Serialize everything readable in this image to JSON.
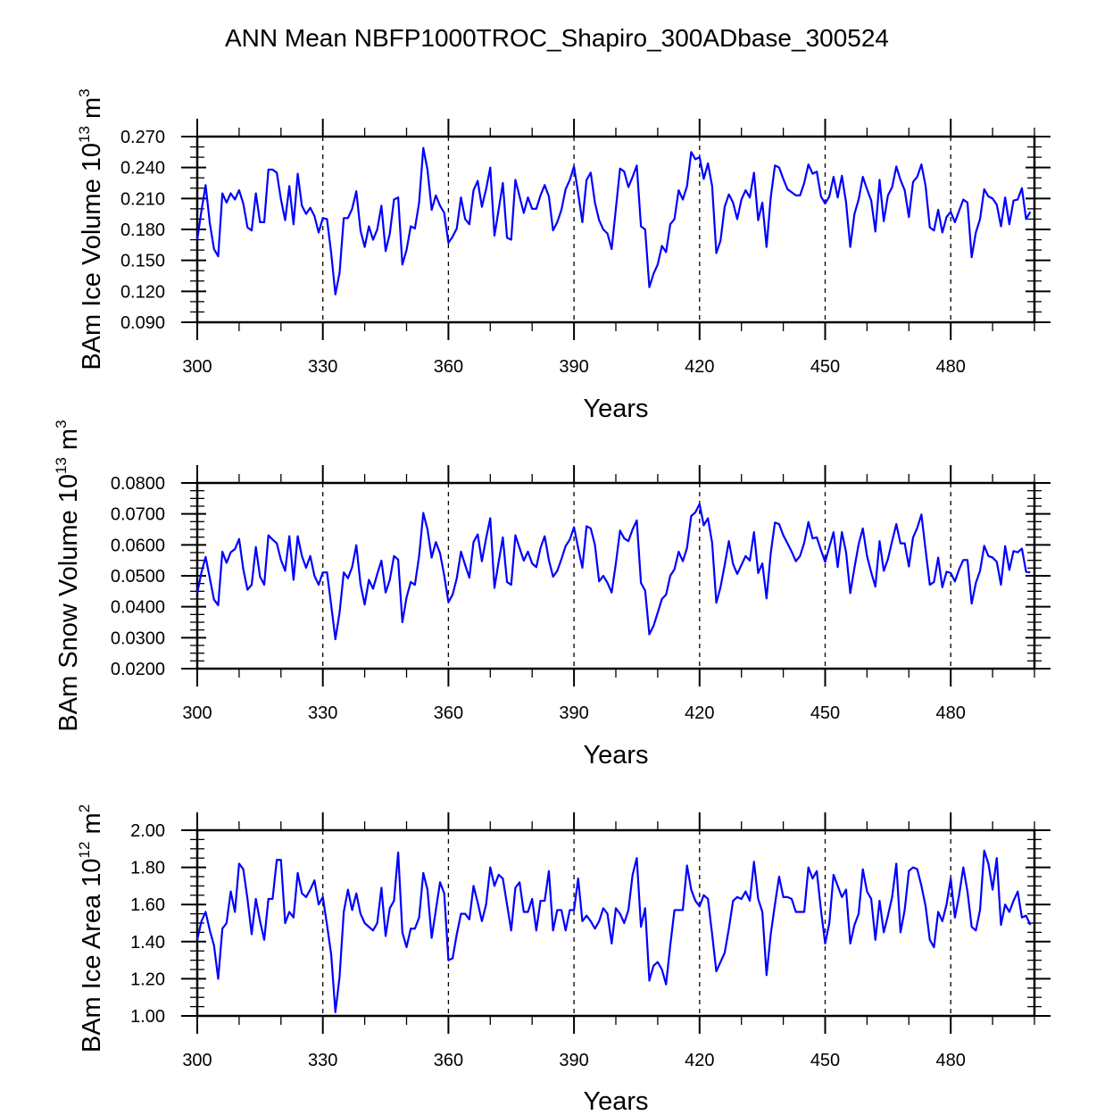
{
  "title": "ANN Mean NBFP1000TROC_Shapiro_300ADbase_300524",
  "chart_data": [
    {
      "type": "line",
      "title": "ANN Mean NBFP1000TROC_Shapiro_300ADbase_300524",
      "ylabel_main": "BAm Ice Volume 10",
      "ylabel_exp": "13",
      "ylabel_unit": "m",
      "ylabel_unit_exp": "3",
      "xlabel": "Years",
      "xlim": [
        300,
        500
      ],
      "ylim": [
        0.09,
        0.27
      ],
      "xticks": [
        300,
        330,
        360,
        390,
        420,
        450,
        480
      ],
      "xtick_labels": [
        "300",
        "330",
        "360",
        "390",
        "420",
        "450",
        "480"
      ],
      "yticks": [
        0.09,
        0.12,
        0.15,
        0.18,
        0.21,
        0.24,
        0.27
      ],
      "ytick_labels": [
        "0.090",
        "0.120",
        "0.150",
        "0.180",
        "0.210",
        "0.240",
        "0.270"
      ],
      "y_minor_step": 0.01,
      "x_minor_step": 10,
      "grid": "dashed vertical lines at x major ticks",
      "color": "#0000ff",
      "x_start": 300,
      "x_step": 1,
      "values": [
        0.17,
        0.198,
        0.223,
        0.186,
        0.161,
        0.154,
        0.215,
        0.206,
        0.215,
        0.209,
        0.218,
        0.205,
        0.182,
        0.179,
        0.215,
        0.187,
        0.187,
        0.238,
        0.238,
        0.235,
        0.209,
        0.189,
        0.222,
        0.185,
        0.234,
        0.203,
        0.195,
        0.201,
        0.193,
        0.177,
        0.191,
        0.19,
        0.157,
        0.117,
        0.138,
        0.191,
        0.191,
        0.2,
        0.217,
        0.179,
        0.163,
        0.183,
        0.17,
        0.18,
        0.203,
        0.159,
        0.176,
        0.209,
        0.211,
        0.146,
        0.16,
        0.183,
        0.181,
        0.206,
        0.259,
        0.238,
        0.199,
        0.213,
        0.203,
        0.196,
        0.167,
        0.173,
        0.181,
        0.211,
        0.19,
        0.185,
        0.218,
        0.227,
        0.202,
        0.219,
        0.24,
        0.174,
        0.199,
        0.225,
        0.172,
        0.17,
        0.228,
        0.212,
        0.196,
        0.211,
        0.2,
        0.2,
        0.213,
        0.223,
        0.212,
        0.179,
        0.187,
        0.199,
        0.219,
        0.228,
        0.241,
        0.215,
        0.187,
        0.228,
        0.235,
        0.206,
        0.189,
        0.18,
        0.176,
        0.161,
        0.2,
        0.239,
        0.236,
        0.221,
        0.231,
        0.242,
        0.183,
        0.18,
        0.124,
        0.137,
        0.146,
        0.164,
        0.158,
        0.185,
        0.19,
        0.218,
        0.209,
        0.222,
        0.255,
        0.248,
        0.25,
        0.229,
        0.244,
        0.222,
        0.157,
        0.169,
        0.202,
        0.214,
        0.206,
        0.19,
        0.209,
        0.218,
        0.211,
        0.235,
        0.189,
        0.206,
        0.163,
        0.211,
        0.242,
        0.24,
        0.229,
        0.219,
        0.216,
        0.213,
        0.213,
        0.225,
        0.243,
        0.234,
        0.236,
        0.212,
        0.205,
        0.212,
        0.231,
        0.211,
        0.232,
        0.206,
        0.163,
        0.195,
        0.209,
        0.231,
        0.219,
        0.208,
        0.178,
        0.228,
        0.188,
        0.213,
        0.221,
        0.241,
        0.228,
        0.218,
        0.192,
        0.226,
        0.231,
        0.243,
        0.222,
        0.182,
        0.179,
        0.199,
        0.177,
        0.192,
        0.197,
        0.187,
        0.198,
        0.209,
        0.206,
        0.153,
        0.177,
        0.19,
        0.219,
        0.212,
        0.21,
        0.204,
        0.183,
        0.211,
        0.185,
        0.208,
        0.209,
        0.22,
        0.19,
        0.197
      ]
    },
    {
      "type": "line",
      "ylabel_main": "BAm Snow Volume 10",
      "ylabel_exp": "13",
      "ylabel_unit": "m",
      "ylabel_unit_exp": "3",
      "xlabel": "Years",
      "xlim": [
        300,
        500
      ],
      "ylim": [
        0.02,
        0.08
      ],
      "xticks": [
        300,
        330,
        360,
        390,
        420,
        450,
        480
      ],
      "xtick_labels": [
        "300",
        "330",
        "360",
        "390",
        "420",
        "450",
        "480"
      ],
      "yticks": [
        0.02,
        0.03,
        0.04,
        0.05,
        0.06,
        0.07,
        0.08
      ],
      "ytick_labels": [
        "0.0200",
        "0.0300",
        "0.0400",
        "0.0500",
        "0.0600",
        "0.0700",
        "0.0800"
      ],
      "y_minor_step": 0.0025,
      "x_minor_step": 10,
      "grid": "dashed vertical lines at x major ticks",
      "color": "#0000ff",
      "x_start": 300,
      "x_step": 1,
      "values": [
        0.0444,
        0.0511,
        0.0561,
        0.0492,
        0.0423,
        0.0405,
        0.0578,
        0.0542,
        0.0576,
        0.0586,
        0.0619,
        0.0521,
        0.0455,
        0.0471,
        0.0593,
        0.0497,
        0.0471,
        0.0631,
        0.0617,
        0.0605,
        0.0551,
        0.0516,
        0.0628,
        0.0487,
        0.0628,
        0.0564,
        0.0526,
        0.0564,
        0.05,
        0.0471,
        0.0511,
        0.0511,
        0.0405,
        0.0295,
        0.0381,
        0.0511,
        0.0492,
        0.0528,
        0.0599,
        0.0473,
        0.0407,
        0.0487,
        0.0458,
        0.0506,
        0.0549,
        0.0446,
        0.0487,
        0.0564,
        0.0552,
        0.035,
        0.043,
        0.048,
        0.0471,
        0.0564,
        0.0703,
        0.065,
        0.0559,
        0.0609,
        0.0573,
        0.0501,
        0.0415,
        0.0439,
        0.0492,
        0.0578,
        0.0535,
        0.0494,
        0.0609,
        0.0634,
        0.0547,
        0.0621,
        0.0686,
        0.0461,
        0.0545,
        0.0624,
        0.048,
        0.0471,
        0.0631,
        0.059,
        0.0549,
        0.0578,
        0.054,
        0.0528,
        0.059,
        0.0628,
        0.0551,
        0.0497,
        0.0516,
        0.0554,
        0.0596,
        0.0617,
        0.0657,
        0.059,
        0.0526,
        0.066,
        0.0653,
        0.06,
        0.0482,
        0.05,
        0.0477,
        0.0446,
        0.054,
        0.0646,
        0.0621,
        0.0612,
        0.065,
        0.0679,
        0.0477,
        0.0452,
        0.0311,
        0.0338,
        0.0381,
        0.0425,
        0.0439,
        0.05,
        0.0521,
        0.0578,
        0.0547,
        0.059,
        0.0693,
        0.0705,
        0.0732,
        0.0663,
        0.0686,
        0.0607,
        0.0413,
        0.0463,
        0.0535,
        0.0612,
        0.0538,
        0.0506,
        0.0535,
        0.0564,
        0.0549,
        0.0641,
        0.0509,
        0.054,
        0.0427,
        0.0573,
        0.0672,
        0.0667,
        0.0631,
        0.0605,
        0.0578,
        0.0547,
        0.0564,
        0.0607,
        0.0674,
        0.0621,
        0.0624,
        0.0583,
        0.0545,
        0.0593,
        0.0641,
        0.0528,
        0.0641,
        0.0576,
        0.0444,
        0.0526,
        0.0602,
        0.0653,
        0.0564,
        0.0511,
        0.0465,
        0.0612,
        0.0516,
        0.0554,
        0.0612,
        0.0667,
        0.0605,
        0.0605,
        0.053,
        0.0624,
        0.0655,
        0.0698,
        0.0583,
        0.0471,
        0.048,
        0.0559,
        0.0463,
        0.0513,
        0.0509,
        0.0482,
        0.0521,
        0.0551,
        0.0551,
        0.041,
        0.0477,
        0.0516,
        0.0597,
        0.0564,
        0.0559,
        0.0545,
        0.0471,
        0.0596,
        0.0519,
        0.058,
        0.0576,
        0.0588,
        0.0513,
        0.0511
      ]
    },
    {
      "type": "line",
      "ylabel_main": "BAm Ice Area 10",
      "ylabel_exp": "12",
      "ylabel_unit": "m",
      "ylabel_unit_exp": "2",
      "xlabel": "Years",
      "xlim": [
        300,
        500
      ],
      "ylim": [
        1.0,
        2.0
      ],
      "xticks": [
        300,
        330,
        360,
        390,
        420,
        450,
        480
      ],
      "xtick_labels": [
        "300",
        "330",
        "360",
        "390",
        "420",
        "450",
        "480"
      ],
      "yticks": [
        1.0,
        1.2,
        1.4,
        1.6,
        1.8,
        2.0
      ],
      "ytick_labels": [
        "1.00",
        "1.20",
        "1.40",
        "1.60",
        "1.80",
        "2.00"
      ],
      "y_minor_step": 0.05,
      "x_minor_step": 10,
      "grid": "dashed vertical lines at x major ticks",
      "color": "#0000ff",
      "x_start": 300,
      "x_step": 1,
      "values": [
        1.41,
        1.51,
        1.56,
        1.46,
        1.38,
        1.2,
        1.47,
        1.5,
        1.67,
        1.56,
        1.82,
        1.79,
        1.63,
        1.44,
        1.63,
        1.51,
        1.41,
        1.63,
        1.63,
        1.84,
        1.84,
        1.5,
        1.56,
        1.53,
        1.77,
        1.66,
        1.64,
        1.68,
        1.73,
        1.6,
        1.64,
        1.49,
        1.33,
        1.02,
        1.21,
        1.56,
        1.68,
        1.57,
        1.66,
        1.55,
        1.5,
        1.48,
        1.46,
        1.5,
        1.69,
        1.43,
        1.58,
        1.62,
        1.88,
        1.45,
        1.37,
        1.47,
        1.47,
        1.53,
        1.77,
        1.68,
        1.42,
        1.57,
        1.72,
        1.66,
        1.3,
        1.31,
        1.44,
        1.55,
        1.55,
        1.52,
        1.7,
        1.61,
        1.51,
        1.6,
        1.8,
        1.7,
        1.76,
        1.74,
        1.6,
        1.46,
        1.69,
        1.72,
        1.56,
        1.56,
        1.63,
        1.46,
        1.62,
        1.62,
        1.78,
        1.46,
        1.57,
        1.57,
        1.46,
        1.57,
        1.57,
        1.74,
        1.51,
        1.54,
        1.51,
        1.47,
        1.51,
        1.58,
        1.55,
        1.39,
        1.58,
        1.55,
        1.5,
        1.57,
        1.76,
        1.85,
        1.48,
        1.58,
        1.19,
        1.27,
        1.29,
        1.25,
        1.17,
        1.38,
        1.57,
        1.57,
        1.57,
        1.81,
        1.68,
        1.62,
        1.59,
        1.65,
        1.63,
        1.44,
        1.24,
        1.29,
        1.34,
        1.47,
        1.62,
        1.64,
        1.63,
        1.67,
        1.62,
        1.83,
        1.63,
        1.56,
        1.22,
        1.44,
        1.6,
        1.75,
        1.64,
        1.64,
        1.63,
        1.56,
        1.56,
        1.56,
        1.8,
        1.74,
        1.78,
        1.57,
        1.39,
        1.5,
        1.76,
        1.7,
        1.64,
        1.68,
        1.39,
        1.49,
        1.55,
        1.79,
        1.67,
        1.63,
        1.41,
        1.62,
        1.45,
        1.54,
        1.64,
        1.82,
        1.45,
        1.57,
        1.78,
        1.8,
        1.79,
        1.7,
        1.59,
        1.41,
        1.37,
        1.56,
        1.51,
        1.6,
        1.74,
        1.53,
        1.65,
        1.8,
        1.67,
        1.48,
        1.46,
        1.57,
        1.89,
        1.82,
        1.68,
        1.85,
        1.49,
        1.6,
        1.56,
        1.62,
        1.67,
        1.53,
        1.54,
        1.49
      ]
    }
  ]
}
